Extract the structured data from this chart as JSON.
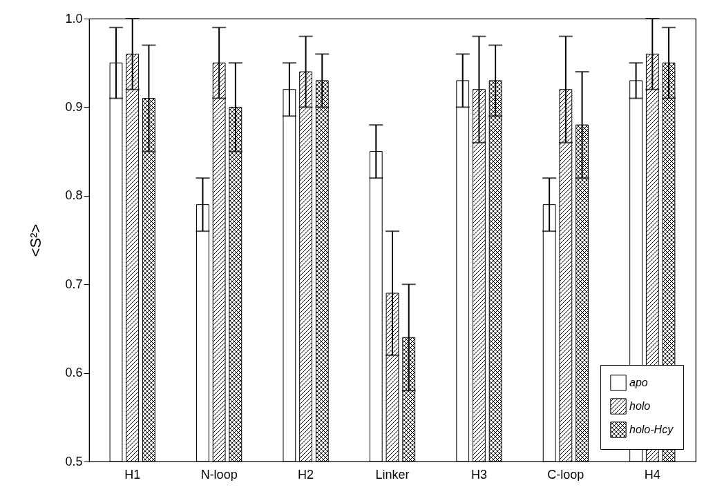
{
  "chart_data": {
    "type": "bar",
    "ylabel": "<S²>",
    "categories": [
      "H1",
      "N-loop",
      "H2",
      "Linker",
      "H3",
      "C-loop",
      "H4"
    ],
    "series": [
      {
        "name": "apo",
        "color": "#ffffff",
        "values": [
          0.95,
          0.79,
          0.92,
          0.85,
          0.93,
          0.79,
          0.93
        ],
        "errors": [
          0.04,
          0.03,
          0.03,
          0.03,
          0.03,
          0.03,
          0.02
        ]
      },
      {
        "name": "holo",
        "color": "#000000",
        "values": [
          0.96,
          0.95,
          0.94,
          0.69,
          0.92,
          0.92,
          0.96
        ],
        "errors": [
          0.04,
          0.04,
          0.04,
          0.07,
          0.06,
          0.06,
          0.04
        ]
      },
      {
        "name": "holo-Hcy",
        "color": "#000000",
        "values": [
          0.91,
          0.9,
          0.93,
          0.64,
          0.93,
          0.88,
          0.95
        ],
        "errors": [
          0.06,
          0.05,
          0.03,
          0.06,
          0.04,
          0.06,
          0.04
        ]
      }
    ],
    "ylim": [
      0.5,
      1.0
    ],
    "yticks": [
      0.5,
      0.6,
      0.7,
      0.8,
      0.9,
      {
        "value": 1.0,
        "label": "1.0"
      }
    ],
    "legend": "bottom right",
    "grid": false
  }
}
